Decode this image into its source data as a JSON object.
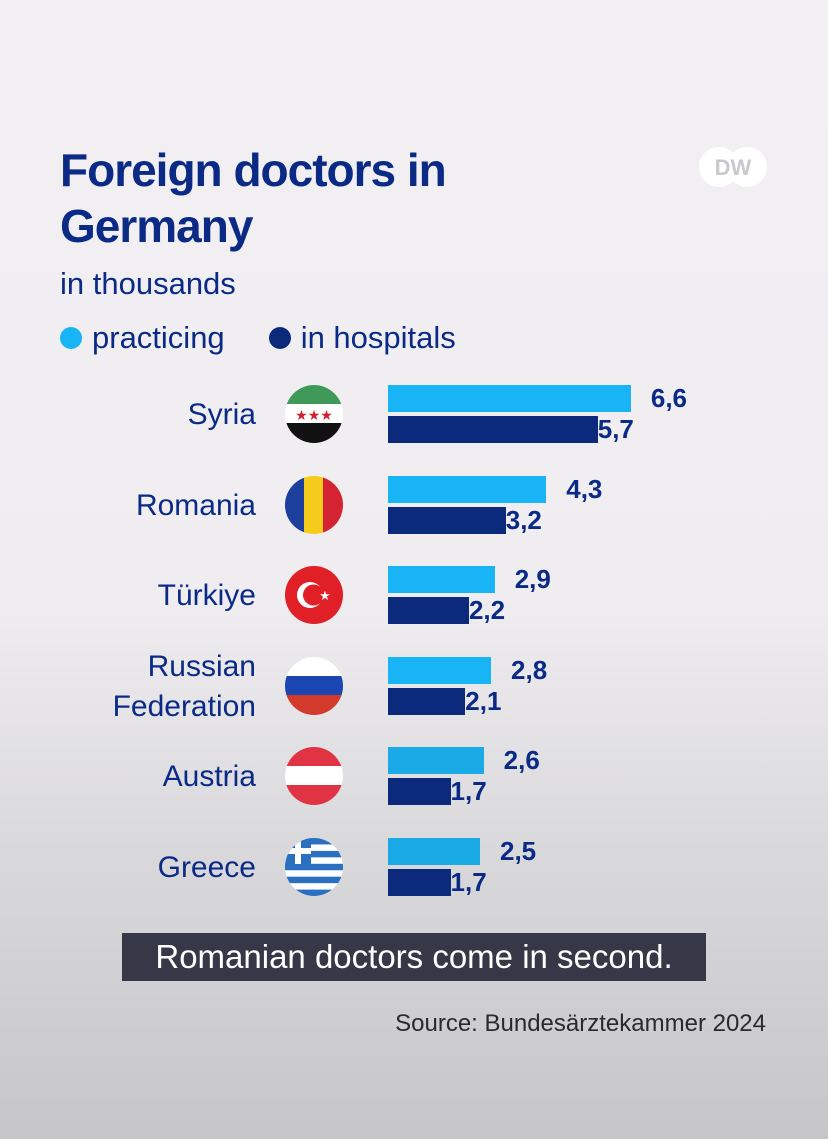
{
  "chart_data": {
    "type": "bar",
    "orientation": "horizontal",
    "title": "Foreign doctors in Germany",
    "subtitle": "in thousands",
    "categories": [
      "Syria",
      "Romania",
      "Türkiye",
      "Russian Federation",
      "Austria",
      "Greece"
    ],
    "category_lines": [
      [
        "Syria"
      ],
      [
        "Romania"
      ],
      [
        "Türkiye"
      ],
      [
        "Russian",
        "Federation"
      ],
      [
        "Austria"
      ],
      [
        "Greece"
      ]
    ],
    "series": [
      {
        "name": "practicing",
        "color": "#18b4f5",
        "values": [
          6.6,
          4.3,
          2.9,
          2.8,
          2.6,
          2.5
        ],
        "labels": [
          "6,6",
          "4,3",
          "2,9",
          "2,8",
          "2,6",
          "2,5"
        ]
      },
      {
        "name": "in hospitals",
        "color": "#0b2a7c",
        "values": [
          5.7,
          3.2,
          2.2,
          2.1,
          1.7,
          1.7
        ],
        "labels": [
          "5,7",
          "3,2",
          "2,2",
          "2,1",
          "1,7",
          "1,7"
        ]
      }
    ],
    "legend_position": "top-left",
    "grid": false
  },
  "logo": "DW",
  "caption": "Romanian doctors come in second.",
  "source": "Source: Bundesärztekammer 2024"
}
